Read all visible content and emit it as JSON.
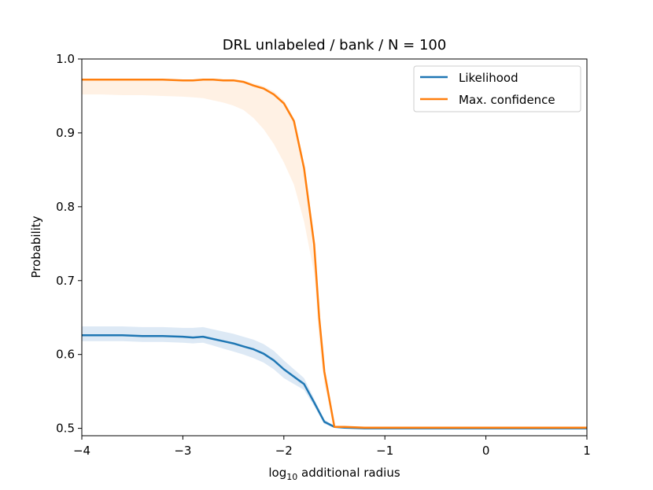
{
  "chart_data": {
    "type": "line",
    "title": "DRL unlabeled / bank / N = 100",
    "xlabel": "log",
    "xlabel_sub": "10",
    "xlabel_rest": " additional radius",
    "ylabel": "Probability",
    "xlim": [
      -4,
      1
    ],
    "ylim": [
      0.49,
      1.0
    ],
    "xticks": [
      -4,
      -3,
      -2,
      -1,
      0,
      1
    ],
    "xtick_labels": [
      "−4",
      "−3",
      "−2",
      "−1",
      "0",
      "1"
    ],
    "yticks": [
      0.5,
      0.6,
      0.7,
      0.8,
      0.9,
      1.0
    ],
    "ytick_labels": [
      "0.5",
      "0.6",
      "0.7",
      "0.8",
      "0.9",
      "1.0"
    ],
    "grid": false,
    "legend_position": "top-right",
    "series": [
      {
        "name": "Likelihood",
        "color": "#1f77b4",
        "band_color": "#c6dbef",
        "x": [
          -4.0,
          -3.8,
          -3.6,
          -3.4,
          -3.2,
          -3.0,
          -2.9,
          -2.8,
          -2.7,
          -2.6,
          -2.5,
          -2.4,
          -2.3,
          -2.2,
          -2.1,
          -2.0,
          -1.9,
          -1.8,
          -1.7,
          -1.6,
          -1.5,
          -1.4,
          -1.2,
          -1.0,
          -0.5,
          0.0,
          0.5,
          1.0
        ],
        "values": [
          0.626,
          0.626,
          0.626,
          0.625,
          0.625,
          0.624,
          0.623,
          0.624,
          0.621,
          0.618,
          0.615,
          0.611,
          0.607,
          0.601,
          0.592,
          0.58,
          0.57,
          0.56,
          0.535,
          0.509,
          0.502,
          0.501,
          0.5,
          0.5,
          0.5,
          0.5,
          0.5,
          0.5
        ],
        "upper": [
          0.638,
          0.638,
          0.638,
          0.637,
          0.637,
          0.636,
          0.636,
          0.637,
          0.634,
          0.631,
          0.628,
          0.624,
          0.62,
          0.614,
          0.605,
          0.592,
          0.58,
          0.568,
          0.54,
          0.512,
          0.503,
          0.502,
          0.5,
          0.5,
          0.5,
          0.5,
          0.5,
          0.5
        ],
        "lower": [
          0.618,
          0.618,
          0.618,
          0.617,
          0.617,
          0.616,
          0.615,
          0.616,
          0.612,
          0.608,
          0.604,
          0.6,
          0.595,
          0.589,
          0.58,
          0.568,
          0.56,
          0.552,
          0.53,
          0.506,
          0.501,
          0.5,
          0.5,
          0.5,
          0.5,
          0.5,
          0.5,
          0.5
        ]
      },
      {
        "name": "Max. confidence",
        "color": "#ff7f0e",
        "band_color": "#ffe8d2",
        "x": [
          -4.0,
          -3.8,
          -3.6,
          -3.4,
          -3.2,
          -3.0,
          -2.9,
          -2.8,
          -2.7,
          -2.6,
          -2.5,
          -2.4,
          -2.3,
          -2.2,
          -2.1,
          -2.0,
          -1.9,
          -1.8,
          -1.7,
          -1.65,
          -1.6,
          -1.5,
          -1.4,
          -1.2,
          -1.0,
          -0.5,
          0.0,
          0.5,
          1.0
        ],
        "values": [
          0.972,
          0.972,
          0.972,
          0.972,
          0.972,
          0.971,
          0.971,
          0.972,
          0.972,
          0.971,
          0.971,
          0.969,
          0.964,
          0.96,
          0.952,
          0.94,
          0.916,
          0.852,
          0.749,
          0.65,
          0.577,
          0.502,
          0.502,
          0.501,
          0.501,
          0.501,
          0.501,
          0.501,
          0.501
        ],
        "upper": [
          0.973,
          0.973,
          0.973,
          0.973,
          0.973,
          0.972,
          0.972,
          0.973,
          0.973,
          0.973,
          0.973,
          0.971,
          0.967,
          0.963,
          0.956,
          0.944,
          0.92,
          0.855,
          0.752,
          0.653,
          0.58,
          0.503,
          0.503,
          0.502,
          0.501,
          0.501,
          0.501,
          0.501,
          0.501
        ],
        "lower": [
          0.952,
          0.952,
          0.951,
          0.951,
          0.95,
          0.949,
          0.948,
          0.947,
          0.944,
          0.941,
          0.937,
          0.931,
          0.92,
          0.905,
          0.885,
          0.86,
          0.83,
          0.78,
          0.71,
          0.62,
          0.56,
          0.501,
          0.501,
          0.5,
          0.5,
          0.5,
          0.5,
          0.5,
          0.5
        ]
      }
    ]
  }
}
